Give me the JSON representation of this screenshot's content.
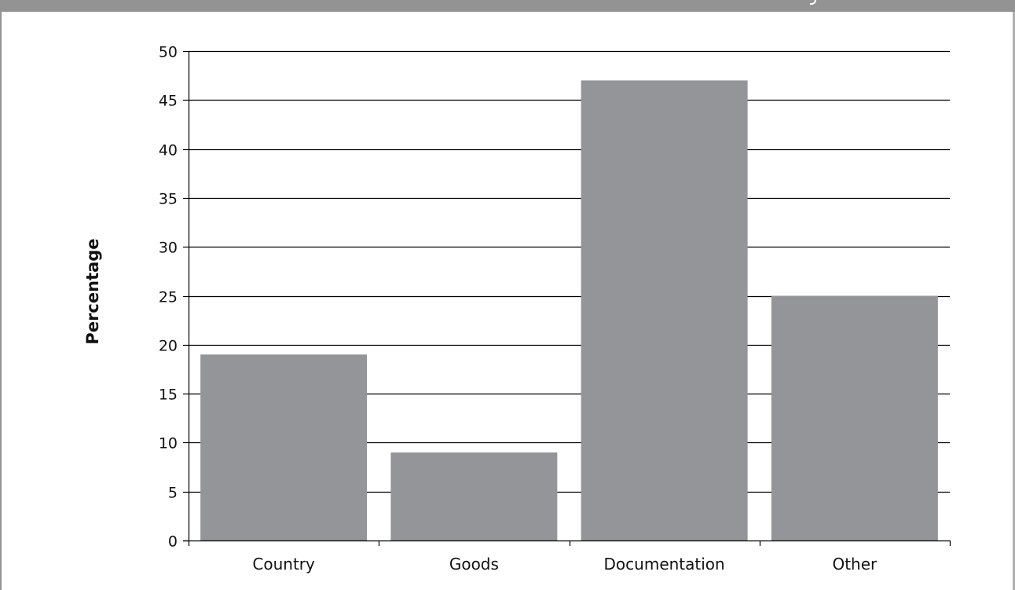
{
  "chart_data": {
    "type": "bar",
    "categories": [
      "Country",
      "Goods",
      "Documentation",
      "Other"
    ],
    "values": [
      19,
      9,
      47,
      25
    ],
    "title": "",
    "xlabel": "",
    "ylabel": "Percentage",
    "ylim": [
      0,
      50
    ],
    "yticks": [
      "0",
      "5",
      "10",
      "15",
      "20",
      "25",
      "30",
      "35",
      "40",
      "45",
      "50"
    ],
    "grid": true,
    "legend": "none",
    "colors": {
      "bar": "#939598",
      "grid": "#000000",
      "frame": "#939393"
    }
  }
}
